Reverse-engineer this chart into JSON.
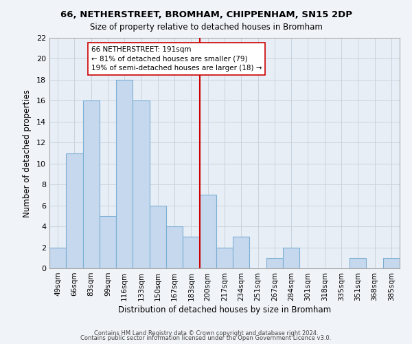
{
  "title": "66, NETHERSTREET, BROMHAM, CHIPPENHAM, SN15 2DP",
  "subtitle": "Size of property relative to detached houses in Bromham",
  "xlabel": "Distribution of detached houses by size in Bromham",
  "ylabel": "Number of detached properties",
  "categories": [
    "49sqm",
    "66sqm",
    "83sqm",
    "99sqm",
    "116sqm",
    "133sqm",
    "150sqm",
    "167sqm",
    "183sqm",
    "200sqm",
    "217sqm",
    "234sqm",
    "251sqm",
    "267sqm",
    "284sqm",
    "301sqm",
    "318sqm",
    "335sqm",
    "351sqm",
    "368sqm",
    "385sqm"
  ],
  "values": [
    2,
    11,
    16,
    5,
    18,
    16,
    6,
    4,
    3,
    7,
    2,
    3,
    0,
    1,
    2,
    0,
    0,
    0,
    1,
    0,
    1
  ],
  "bar_color": "#c5d8ed",
  "bar_edge_color": "#7bafd4",
  "highlight_line_color": "#cc0000",
  "annotation_text": "66 NETHERSTREET: 191sqm\n← 81% of detached houses are smaller (79)\n19% of semi-detached houses are larger (18) →",
  "annotation_box_color": "#ffffff",
  "annotation_box_edge_color": "#cc0000",
  "ylim": [
    0,
    22
  ],
  "yticks": [
    0,
    2,
    4,
    6,
    8,
    10,
    12,
    14,
    16,
    18,
    20,
    22
  ],
  "footer_line1": "Contains HM Land Registry data © Crown copyright and database right 2024.",
  "footer_line2": "Contains public sector information licensed under the Open Government Licence v3.0.",
  "background_color": "#f0f4f8",
  "plot_bg_color": "#e8eef5",
  "grid_color": "#c8d4e0"
}
